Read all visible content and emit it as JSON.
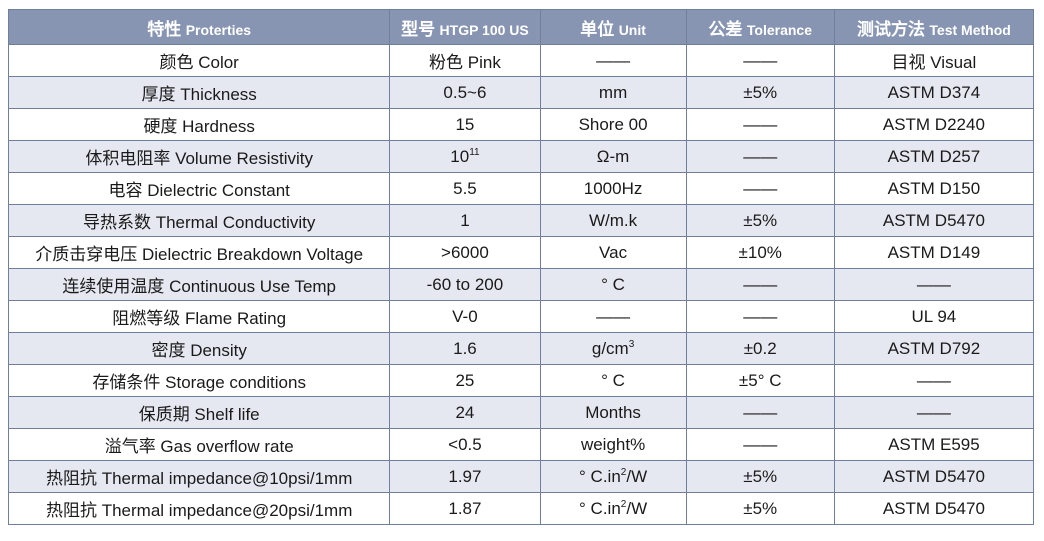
{
  "headers": [
    {
      "zh": "特性",
      "en": "Proterties"
    },
    {
      "zh": "型号",
      "en": "HTGP 100 US"
    },
    {
      "zh": "单位",
      "en": "Unit"
    },
    {
      "zh": "公差",
      "en": "Tolerance"
    },
    {
      "zh": "测试方法",
      "en": "Test Method"
    }
  ],
  "rows": [
    {
      "property": "颜色 Color",
      "value": "粉色 Pink",
      "unit": "——",
      "tolerance": "——",
      "method": "目视 Visual"
    },
    {
      "property": "厚度 Thickness",
      "value": "0.5~6",
      "unit": "mm",
      "tolerance": "±5%",
      "method": "ASTM D374"
    },
    {
      "property": "硬度 Hardness",
      "value": "15",
      "unit": "Shore 00",
      "tolerance": "——",
      "method": "ASTM D2240"
    },
    {
      "property": "体积电阻率 Volume Resistivity",
      "value": "10",
      "value_sup": "11",
      "unit": "Ω-m",
      "tolerance": "——",
      "method": "ASTM D257"
    },
    {
      "property": "电容 Dielectric Constant",
      "value": "5.5",
      "unit": "1000Hz",
      "tolerance": "——",
      "method": "ASTM D150"
    },
    {
      "property": "导热系数 Thermal Conductivity",
      "value": "1",
      "unit": "W/m.k",
      "tolerance": "±5%",
      "method": "ASTM D5470"
    },
    {
      "property": "介质击穿电压 Dielectric Breakdown Voltage",
      "value": ">6000",
      "unit": "Vac",
      "tolerance": "±10%",
      "method": "ASTM D149"
    },
    {
      "property": "连续使用温度 Continuous Use Temp",
      "value": "-60 to 200",
      "unit": "° C",
      "tolerance": "——",
      "method": "——"
    },
    {
      "property": "阻燃等级 Flame Rating",
      "value": "V-0",
      "unit": "——",
      "tolerance": "——",
      "method": "UL 94"
    },
    {
      "property": "密度 Density",
      "value": "1.6",
      "unit": "g/cm",
      "unit_sup": "3",
      "tolerance": "±0.2",
      "method": "ASTM D792"
    },
    {
      "property": "存储条件 Storage conditions",
      "value": "25",
      "unit": "° C",
      "tolerance": "±5° C",
      "method": "——"
    },
    {
      "property": "保质期 Shelf life",
      "value": "24",
      "unit": "Months",
      "tolerance": "——",
      "method": "——"
    },
    {
      "property": "溢气率 Gas overflow rate",
      "value": "<0.5",
      "unit": "weight%",
      "tolerance": "——",
      "method": "ASTM E595"
    },
    {
      "property": "热阻抗 Thermal impedance@10psi/1mm",
      "value": "1.97",
      "unit": "° C.in",
      "unit_sup": "2",
      "unit_tail": "/W",
      "tolerance": "±5%",
      "method": "ASTM D5470"
    },
    {
      "property": "热阻抗 Thermal impedance@20psi/1mm",
      "value": "1.87",
      "unit": "° C.in",
      "unit_sup": "2",
      "unit_tail": "/W",
      "tolerance": "±5%",
      "method": "ASTM D5470"
    }
  ]
}
